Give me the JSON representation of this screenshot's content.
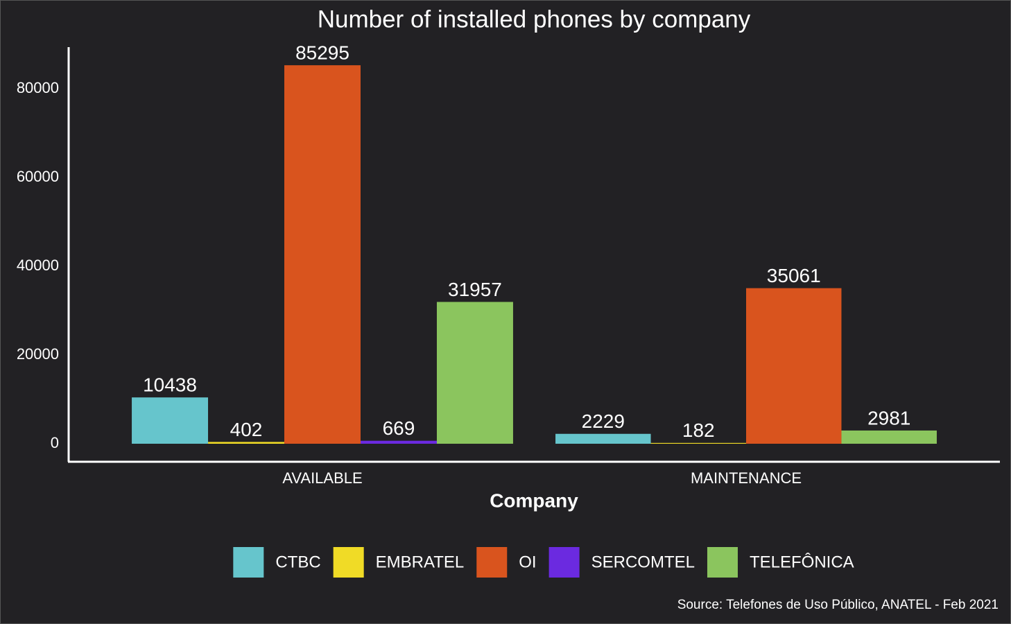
{
  "chart_data": {
    "type": "bar",
    "title": "Number of installed phones by company",
    "x_label": "Company",
    "source": "Source: Telefones de Uso Público, ANATEL - Feb 2021",
    "categories": [
      "AVAILABLE",
      "MAINTENANCE"
    ],
    "series": [
      {
        "name": "CTBC",
        "color": "#66c5cc",
        "values": [
          10438,
          2229
        ]
      },
      {
        "name": "EMBRATEL",
        "color": "#f0db26",
        "values": [
          402,
          182
        ]
      },
      {
        "name": "OI",
        "color": "#d9541e",
        "values": [
          85295,
          35061
        ]
      },
      {
        "name": "SERCOMTEL",
        "color": "#6b2ae0",
        "values": [
          669,
          null
        ]
      },
      {
        "name": "TELEFÔNICA",
        "color": "#8bc55e",
        "values": [
          31957,
          2981
        ]
      }
    ],
    "ylim": [
      -4062,
      89375
    ],
    "yticks": [
      0,
      20000,
      40000,
      60000,
      80000
    ],
    "legend": "bottom"
  }
}
